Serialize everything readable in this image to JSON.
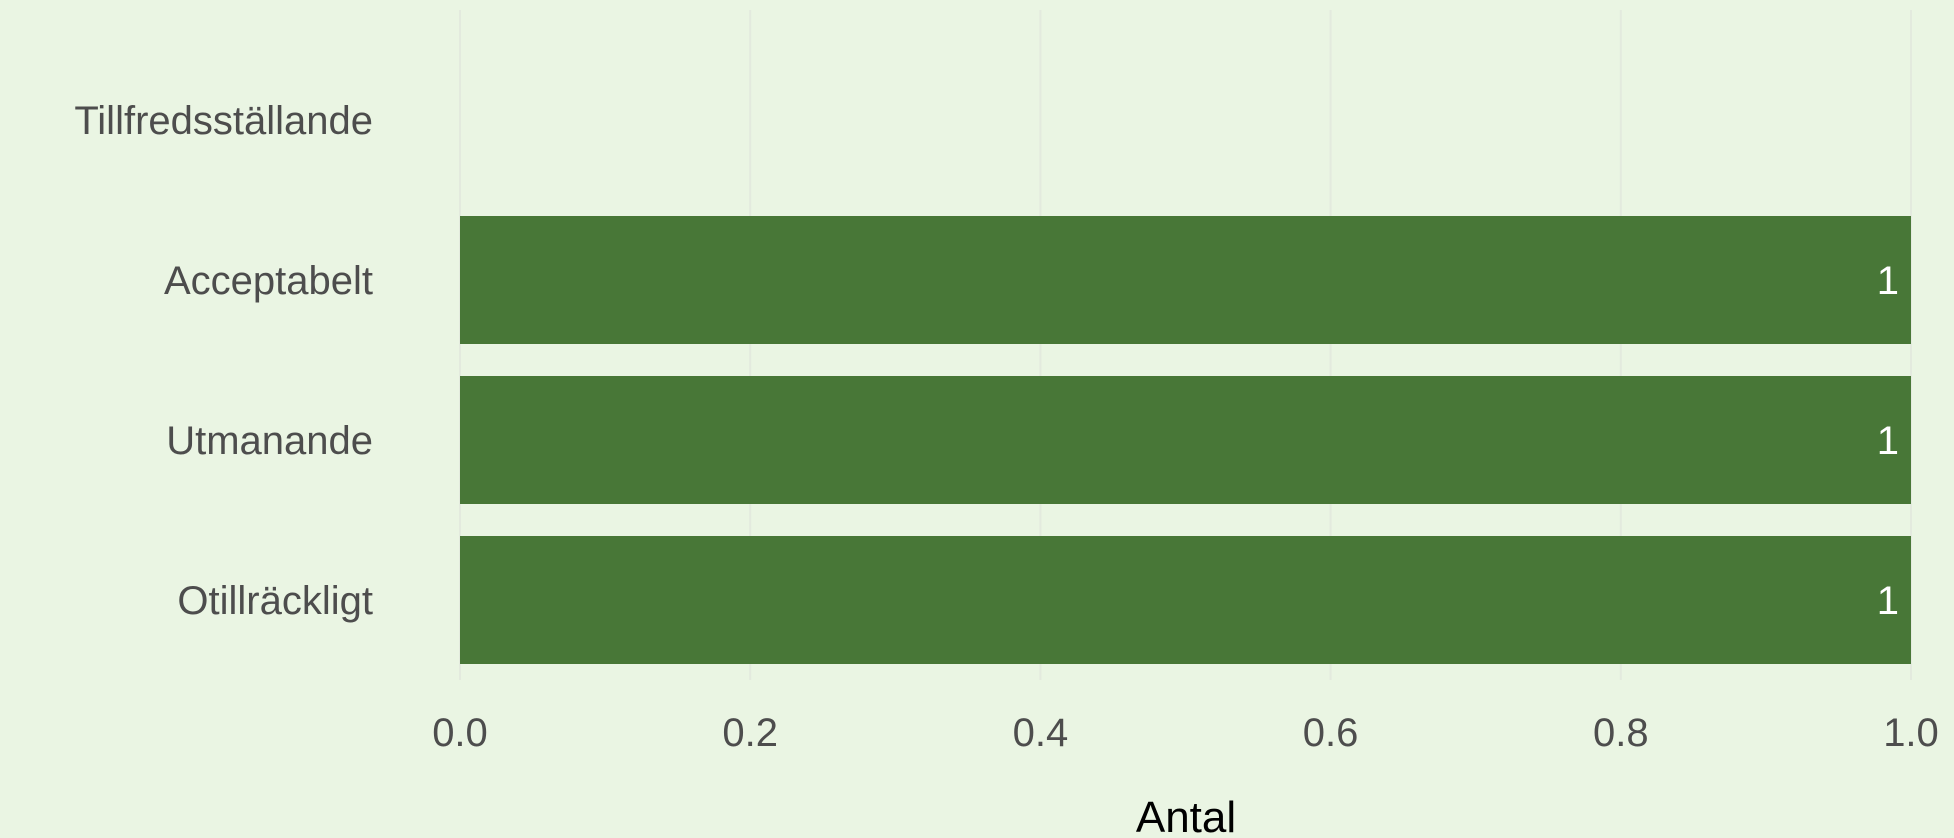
{
  "chart_data": {
    "type": "bar",
    "orientation": "horizontal",
    "categories": [
      "Tillfredsställande",
      "Acceptabelt",
      "Utmanande",
      "Otillräckligt"
    ],
    "values": [
      0,
      1,
      1,
      1
    ],
    "value_labels": [
      "",
      "1",
      "1",
      "1"
    ],
    "xlabel": "Antal",
    "ylabel": "",
    "xlim": [
      0,
      1
    ],
    "xticks": [
      "0.0",
      "0.2",
      "0.4",
      "0.6",
      "0.8",
      "1.0"
    ],
    "grid": true,
    "legend": "none",
    "colors": {
      "background": "#eaf5e3",
      "bar": "#487737",
      "value_label": "#ffffff"
    }
  }
}
